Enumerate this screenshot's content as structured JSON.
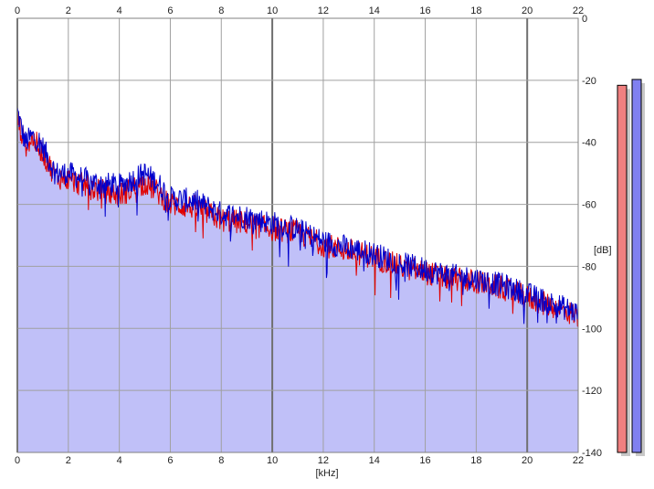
{
  "x_axis": {
    "ticks": [
      "0",
      "2",
      "4",
      "6",
      "8",
      "10",
      "12",
      "14",
      "16",
      "18",
      "20",
      "22"
    ],
    "unit_label": "[kHz]",
    "range_khz": [
      0,
      22
    ]
  },
  "y_axis": {
    "ticks": [
      "0",
      "-20",
      "-40",
      "-60",
      "-80",
      "-100",
      "-120",
      "-140"
    ],
    "unit_label": "[dB]",
    "range_db": [
      -140,
      0
    ]
  },
  "colors": {
    "background": "#ffffff",
    "fill": "#c0c0f8",
    "grid": "#a0a0a0",
    "left_channel": "#e00000",
    "right_channel": "#0000cc",
    "meter_left": "#f08080",
    "meter_right": "#8080f0"
  },
  "meters": {
    "left_level_db": -11,
    "right_level_db": -10
  },
  "chart_data": {
    "type": "line",
    "xlabel": "[kHz]",
    "ylabel": "[dB]",
    "xlim": [
      0,
      22
    ],
    "ylim": [
      -140,
      0
    ],
    "grid": true,
    "series": [
      {
        "color": "#0000cc",
        "x": [
          0,
          0.3,
          0.6,
          0.9,
          1.5,
          2,
          3,
          4,
          5,
          5.5,
          6,
          7,
          8,
          9,
          10,
          11,
          12,
          13,
          14,
          15,
          16,
          17,
          18,
          19,
          20,
          21,
          22
        ],
        "y": [
          -30,
          -40,
          -38,
          -40,
          -50,
          -50,
          -53,
          -54,
          -50,
          -53,
          -58,
          -59,
          -63,
          -64,
          -66,
          -68,
          -72,
          -74,
          -76,
          -79,
          -81,
          -83,
          -84,
          -86,
          -89,
          -92,
          -95
        ]
      },
      {
        "color": "#e00000",
        "x": [
          0,
          0.3,
          0.6,
          0.9,
          1.5,
          2,
          3,
          4,
          5,
          5.5,
          6,
          7,
          8,
          9,
          10,
          11,
          12,
          13,
          14,
          15,
          16,
          17,
          18,
          19,
          20,
          21,
          22
        ],
        "y": [
          -32,
          -41,
          -39,
          -42,
          -51,
          -52,
          -55,
          -57,
          -53,
          -56,
          -60,
          -61,
          -65,
          -66,
          -68,
          -69,
          -73,
          -75,
          -77,
          -80,
          -82,
          -84,
          -85,
          -87,
          -90,
          -93,
          -96
        ]
      }
    ]
  }
}
